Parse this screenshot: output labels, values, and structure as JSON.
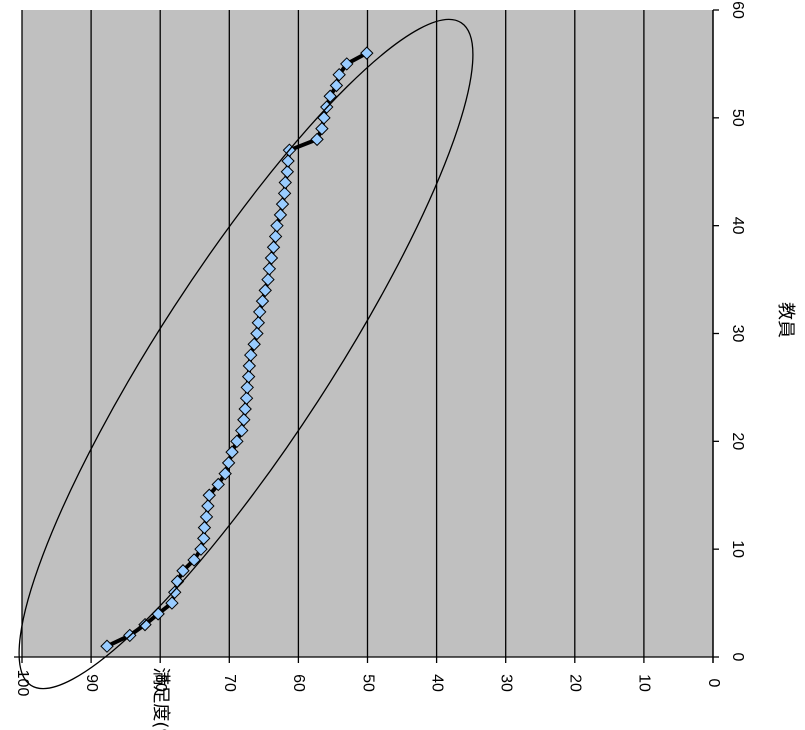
{
  "chart_data": {
    "type": "scatter",
    "orientation": "rotated-90-clockwise",
    "xlabel": "教員",
    "ylabel": "満足度(%)",
    "xlim": [
      0,
      60
    ],
    "ylim": [
      0,
      100
    ],
    "x_ticks": [
      "0",
      "10",
      "20",
      "30",
      "40",
      "50",
      "60"
    ],
    "y_ticks": [
      "0",
      "10",
      "20",
      "30",
      "40",
      "50",
      "60",
      "70",
      "80",
      "90",
      "100"
    ],
    "plot_background": "#c0c0c0",
    "marker_color": "#99ccff",
    "line_color": "#000000",
    "grid": "major y gridlines",
    "legend": "none",
    "annotation": "ellipse enclosing the data points",
    "series": [
      {
        "x": [
          1,
          2,
          3,
          4,
          5,
          6,
          7,
          8,
          9,
          10,
          11,
          12,
          13,
          14,
          15,
          16,
          17,
          18,
          19,
          20,
          21,
          22,
          23,
          24,
          25,
          26,
          27,
          28,
          29,
          30,
          31,
          32,
          33,
          34,
          35,
          36,
          37,
          38,
          39,
          40,
          41,
          42,
          43,
          44,
          45,
          46,
          47,
          48,
          49,
          50,
          51,
          52,
          53,
          54,
          55,
          56
        ],
        "y": [
          87.7,
          84.4,
          82.2,
          80.3,
          78.3,
          77.9,
          77.5,
          76.7,
          75.1,
          74.1,
          73.7,
          73.6,
          73.3,
          73.1,
          72.9,
          71.6,
          70.6,
          70.1,
          69.6,
          68.9,
          68.2,
          67.9,
          67.7,
          67.5,
          67.4,
          67.2,
          67.1,
          66.9,
          66.4,
          66.0,
          65.8,
          65.6,
          65.2,
          64.8,
          64.4,
          64.2,
          63.9,
          63.6,
          63.3,
          63.1,
          62.6,
          62.3,
          62.0,
          61.9,
          61.6,
          61.5,
          61.3,
          57.3,
          56.6,
          56.3,
          55.9,
          55.4,
          54.5,
          54.1,
          53.0,
          50.1
        ]
      }
    ]
  }
}
